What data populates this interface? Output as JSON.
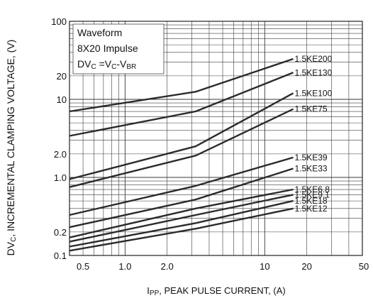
{
  "chart_data": {
    "type": "line",
    "xlabel_main": "I",
    "xlabel_sub": "PP",
    "xlabel_rest": ", PEAK PULSE CURRENT, (A)",
    "ylabel_main": "DV",
    "ylabel_sub": "C",
    "ylabel_rest": ", INCREMENTAL CLAMPING VOLTAGE, (V)",
    "x_scale": "log",
    "y_scale": "log",
    "xlim": [
      0.4,
      50
    ],
    "ylim": [
      0.1,
      100
    ],
    "x_ticks": [
      {
        "value": 0.5,
        "label": "0.5"
      },
      {
        "value": 1,
        "label": "1.0"
      },
      {
        "value": 2,
        "label": "2.0"
      },
      {
        "value": 10,
        "label": "10"
      },
      {
        "value": 20,
        "label": "20"
      },
      {
        "value": 50,
        "label": "50"
      }
    ],
    "y_ticks": [
      {
        "value": 0.1,
        "label": "0.1"
      },
      {
        "value": 0.2,
        "label": "0.2"
      },
      {
        "value": 1,
        "label": "1.0"
      },
      {
        "value": 2,
        "label": "2.0"
      },
      {
        "value": 10,
        "label": "10"
      },
      {
        "value": 20,
        "label": "20"
      },
      {
        "value": 100,
        "label": "100"
      }
    ],
    "grid": true,
    "legend_box": {
      "line1": "Waveform",
      "line2": "8X20 Impulse",
      "line3_a": "DV",
      "line3_a_sub": "C",
      "line3_b": " =V",
      "line3_b_sub": "C",
      "line3_c": "-V",
      "line3_c_sub": "BR"
    },
    "series": [
      {
        "name": "1.5KE200",
        "x": [
          0.4,
          3.2,
          16
        ],
        "y": [
          7.0,
          12.5,
          33
        ]
      },
      {
        "name": "1.5KE130",
        "x": [
          0.4,
          3.2,
          16
        ],
        "y": [
          3.4,
          7.0,
          22
        ]
      },
      {
        "name": "1.5KE100",
        "x": [
          0.4,
          3.2,
          16
        ],
        "y": [
          0.95,
          2.5,
          12
        ]
      },
      {
        "name": "1.5KE75",
        "x": [
          0.4,
          3.2,
          16
        ],
        "y": [
          0.75,
          1.9,
          7.5
        ]
      },
      {
        "name": "1.5KE39",
        "x": [
          0.4,
          3.2,
          16
        ],
        "y": [
          0.33,
          0.78,
          1.8
        ]
      },
      {
        "name": "1.5KE33",
        "x": [
          0.4,
          3.2,
          16
        ],
        "y": [
          0.23,
          0.52,
          1.3
        ]
      },
      {
        "name": "1.5KE6.8",
        "x": [
          0.4,
          3.2,
          16
        ],
        "y": [
          0.17,
          0.4,
          0.7
        ]
      },
      {
        "name": "1.5KE9.1",
        "x": [
          0.4,
          3.2,
          16
        ],
        "y": [
          0.15,
          0.33,
          0.6
        ]
      },
      {
        "name": "1.5KE18",
        "x": [
          0.4,
          3.2,
          16
        ],
        "y": [
          0.13,
          0.26,
          0.5
        ]
      },
      {
        "name": "1.5KE12",
        "x": [
          0.4,
          3.2,
          16
        ],
        "y": [
          0.115,
          0.22,
          0.4
        ]
      }
    ],
    "line_color": "#2b2b2b",
    "grid_color": "#3a3a3a"
  }
}
